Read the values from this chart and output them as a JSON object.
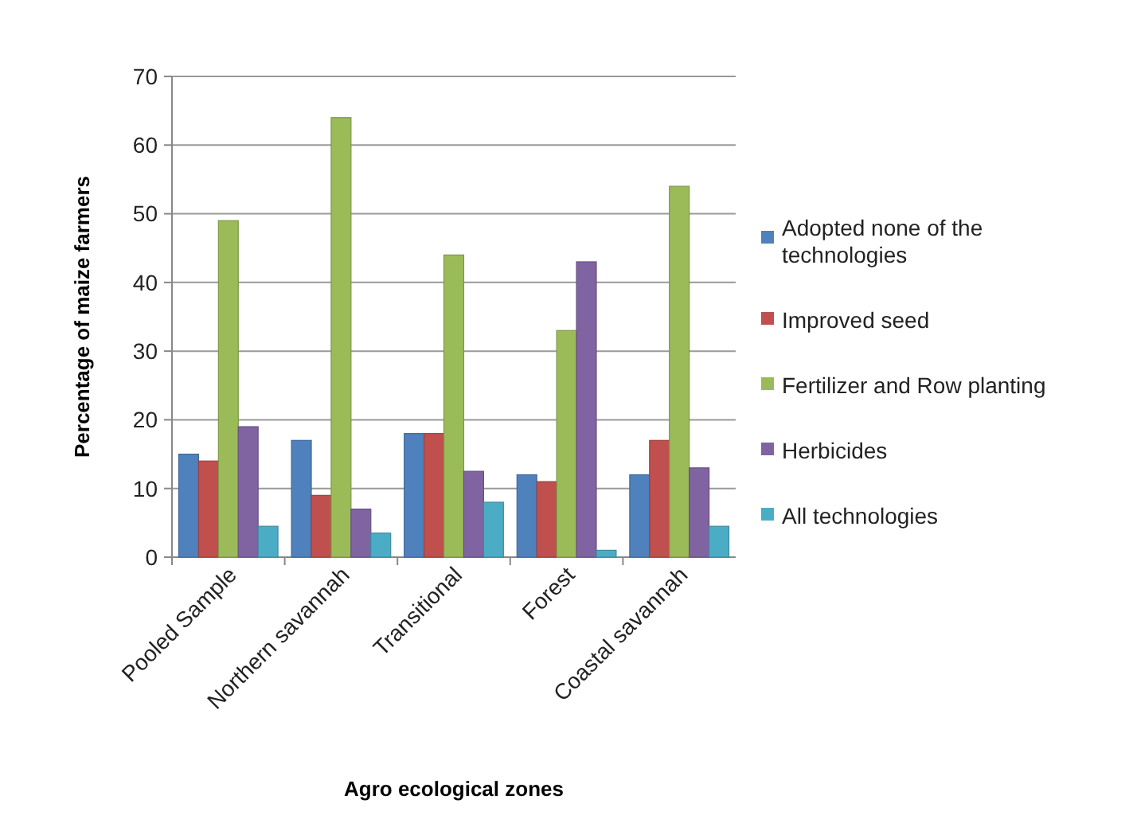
{
  "chart_data": {
    "type": "bar",
    "xlabel": "Agro ecological zones",
    "ylabel": "Percentage of maize farmers",
    "categories": [
      "Pooled Sample",
      "Northern savannah",
      "Transitional",
      "Forest",
      "Coastal savannah"
    ],
    "series": [
      {
        "name": "Adopted none of the technologies",
        "color": "#4f81bd",
        "values": [
          15,
          17,
          18,
          12,
          12
        ]
      },
      {
        "name": "Improved seed",
        "color": "#c0504d",
        "values": [
          14,
          9,
          18,
          11,
          17
        ]
      },
      {
        "name": "Fertilizer and Row planting",
        "color": "#9bbb59",
        "values": [
          49,
          64,
          44,
          33,
          54
        ]
      },
      {
        "name": "Herbicides",
        "color": "#8064a2",
        "values": [
          19,
          7,
          12.5,
          43,
          13
        ]
      },
      {
        "name": "All technologies",
        "color": "#4bacc6",
        "values": [
          4.5,
          3.5,
          8,
          1,
          4.5
        ]
      }
    ],
    "ylim": [
      0,
      70
    ],
    "yticks": [
      0,
      10,
      20,
      30,
      40,
      50,
      60,
      70
    ],
    "grid": "y",
    "legend": "right"
  }
}
